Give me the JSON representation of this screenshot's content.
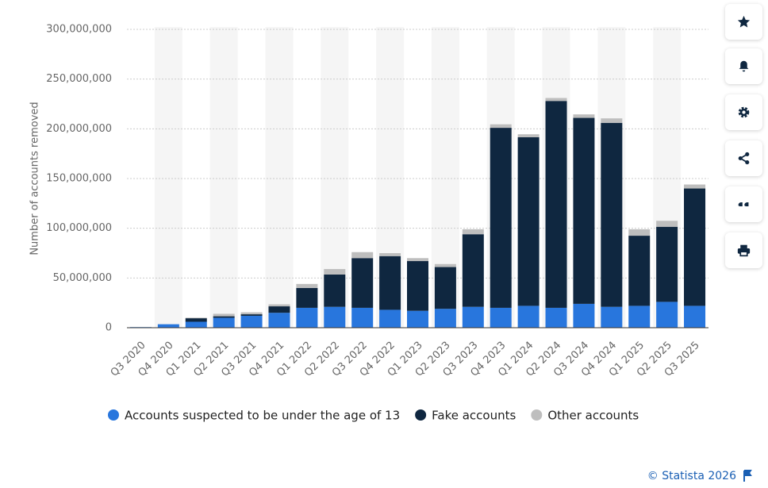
{
  "chart_data": {
    "type": "stacked-bar",
    "y_label": "Number of accounts removed",
    "categories": [
      "Q3 2020",
      "Q4 2020",
      "Q1 2021",
      "Q2 2021",
      "Q3 2021",
      "Q4 2021",
      "Q1 2022",
      "Q2 2022",
      "Q3 2022",
      "Q4 2022",
      "Q1 2023",
      "Q2 2023",
      "Q3 2023",
      "Q4 2023",
      "Q1 2024",
      "Q2 2024",
      "Q3 2024",
      "Q4 2024",
      "Q1 2025",
      "Q2 2025",
      "Q3 2025"
    ],
    "series": [
      {
        "name": "Accounts suspected to be under the age of 13",
        "color": "#2876dd",
        "values": [
          600000,
          3500000,
          6000000,
          10000000,
          12000000,
          15000000,
          20000000,
          21000000,
          20000000,
          18000000,
          17000000,
          19000000,
          21000000,
          20000000,
          22000000,
          20000000,
          24000000,
          21000000,
          22000000,
          26000000,
          22000000
        ]
      },
      {
        "name": "Fake accounts",
        "color": "#0f2740",
        "values": [
          0,
          0,
          3500000,
          1500000,
          1500000,
          6500000,
          20000000,
          32500000,
          50000000,
          54000000,
          50000000,
          42000000,
          73000000,
          181000000,
          169500000,
          208000000,
          187000000,
          185000000,
          70500000,
          75500000,
          118000000
        ]
      },
      {
        "name": "Other accounts",
        "color": "#bebebe",
        "values": [
          0,
          0,
          600000,
          2500000,
          2000000,
          2000000,
          4000000,
          5500000,
          6000000,
          3000000,
          3000000,
          3000000,
          5000000,
          3500000,
          3000000,
          3000000,
          3500000,
          4500000,
          6500000,
          6000000,
          4000000
        ]
      }
    ],
    "ylim": [
      0,
      300000000
    ],
    "yticks": [
      0,
      {
        "value": 50000000,
        "label": "50,000,000"
      },
      {
        "value": 100000000,
        "label": "100,000,000"
      },
      {
        "value": 150000000,
        "label": "150,000,000"
      },
      {
        "value": 200000000,
        "label": "200,000,000"
      },
      {
        "value": 250000000,
        "label": "250,000,000"
      },
      {
        "value": 300000000,
        "label": "300,000,000"
      }
    ],
    "grid": true,
    "legend": "bottom",
    "source": "© Statista 2026"
  }
}
